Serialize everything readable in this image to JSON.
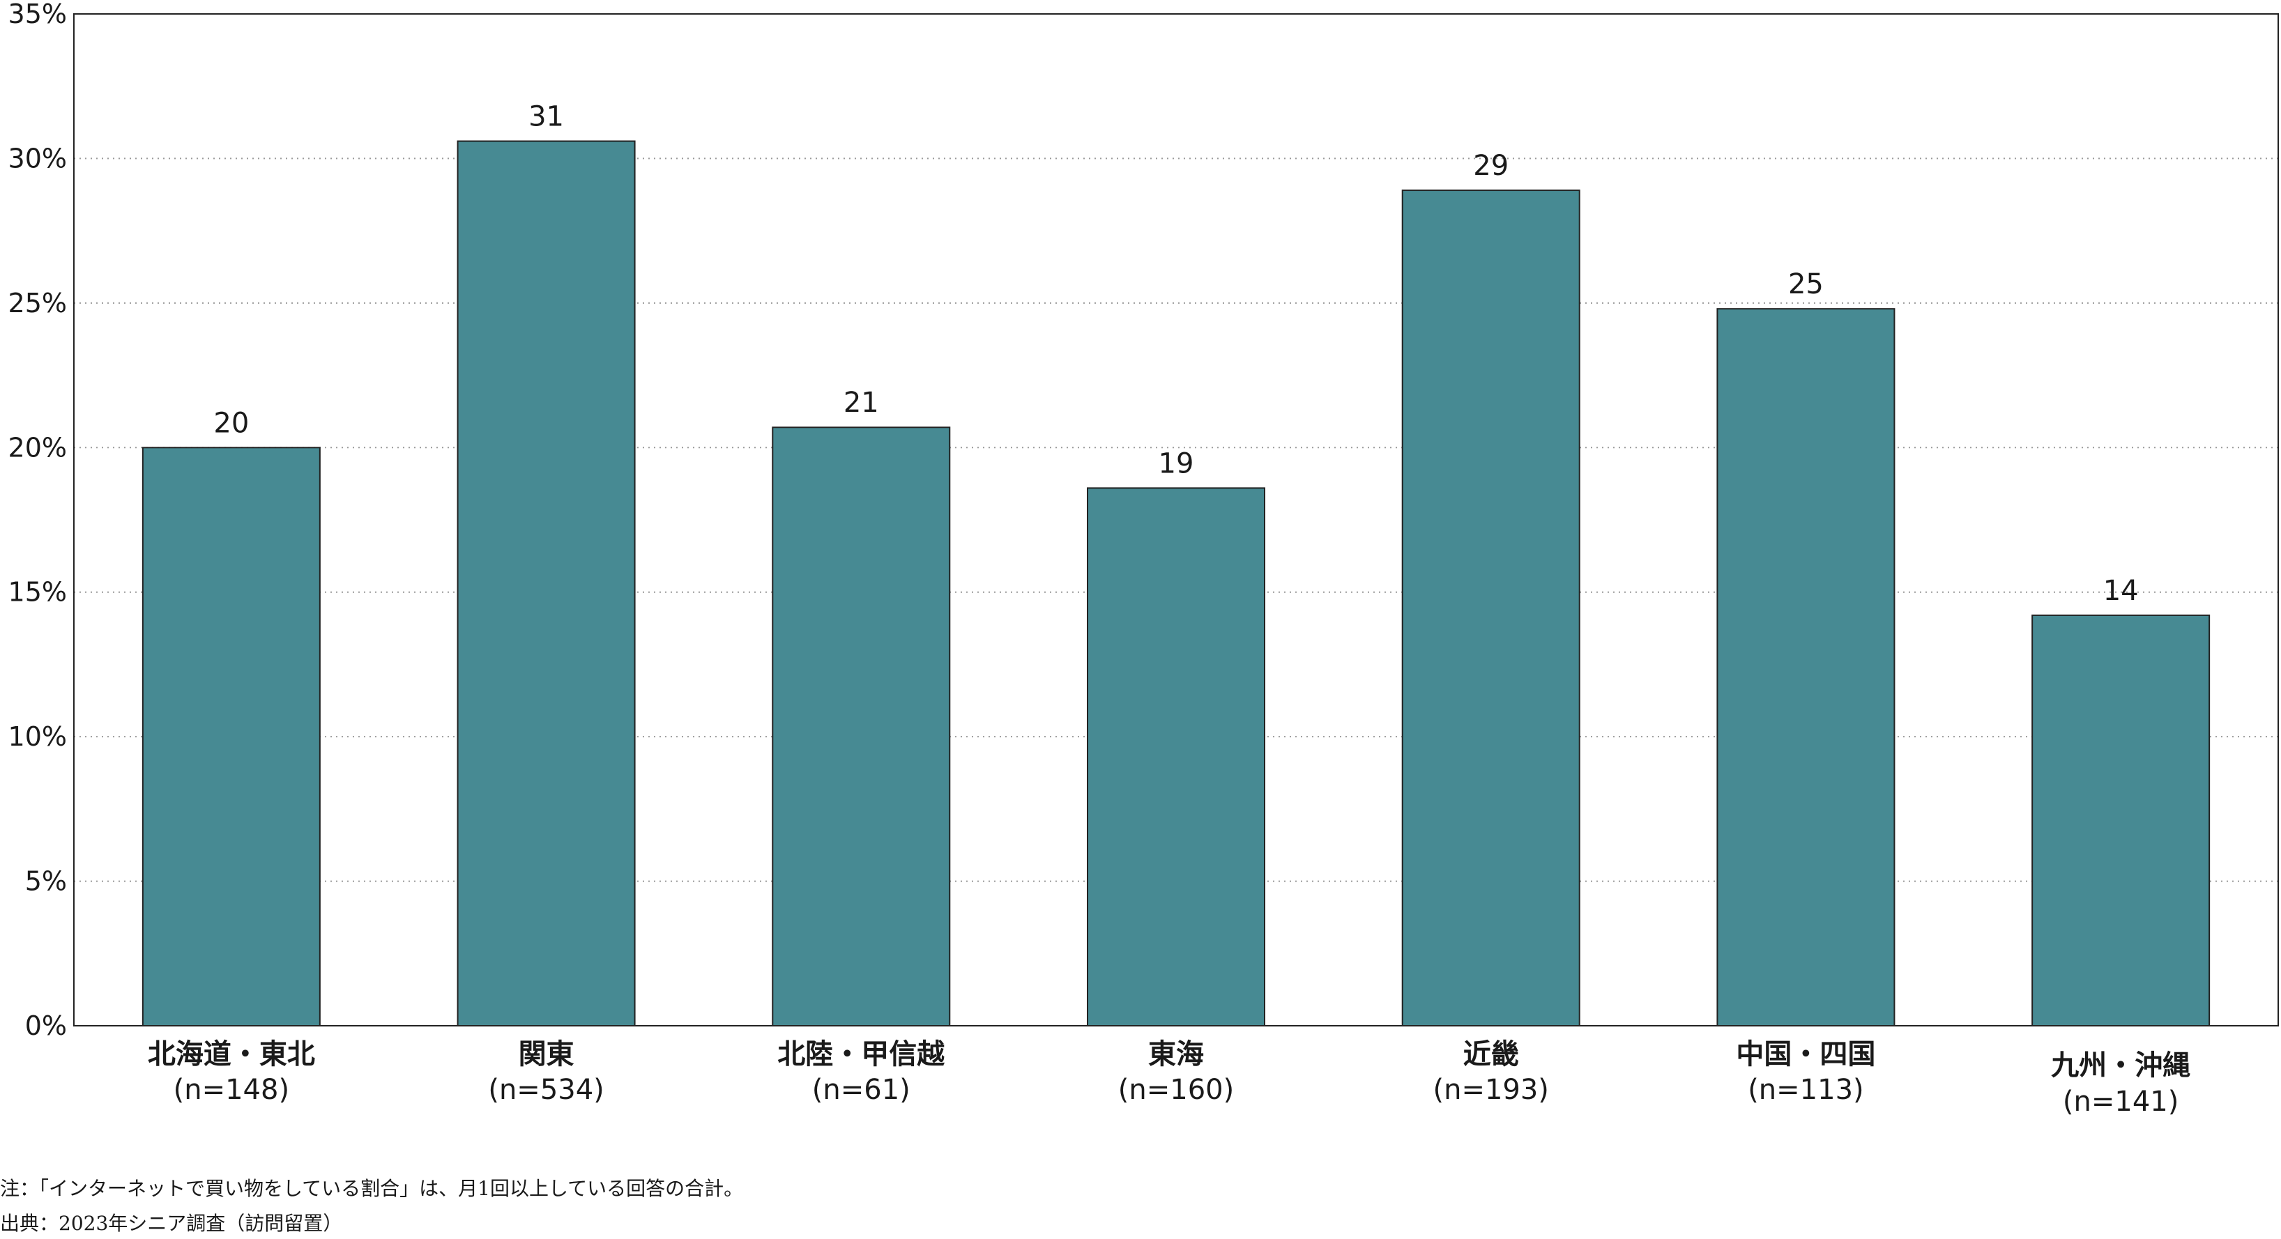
{
  "chart_data": {
    "type": "bar",
    "categories": [
      "北海道・東北",
      "関東",
      "北陸・甲信越",
      "東海",
      "近畿",
      "中国・四国",
      "九州・沖縄"
    ],
    "sample_sizes": [
      "(n=148)",
      "(n=534)",
      "(n=61)",
      "(n=160)",
      "(n=193)",
      "(n=113)",
      "(n=141)"
    ],
    "values": [
      20.0,
      30.6,
      20.7,
      18.6,
      28.9,
      24.8,
      14.2
    ],
    "data_labels": [
      "20",
      "31",
      "21",
      "19",
      "29",
      "25",
      "14"
    ],
    "ylim": [
      0,
      35
    ],
    "yticks": [
      0,
      5,
      10,
      15,
      20,
      25,
      30,
      35
    ],
    "ytick_labels": [
      "0%",
      "5%",
      "10%",
      "15%",
      "20%",
      "25%",
      "30%",
      "35%"
    ],
    "grid": "horizontal-dotted",
    "bar_color": "#478a93",
    "title": "",
    "xlabel": "",
    "ylabel": ""
  },
  "notes": {
    "note": "注：「インターネットで買い物をしている割合」は、月1回以上している回答の合計。",
    "source": "出典：2023年シニア調査（訪問留置）"
  }
}
